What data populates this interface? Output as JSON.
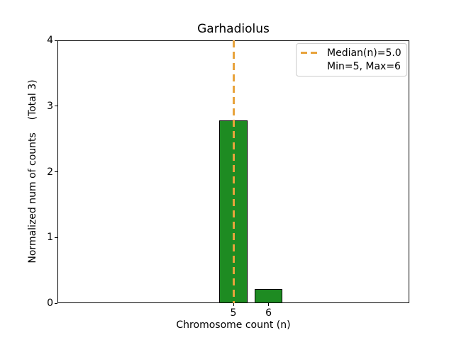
{
  "chart_data": {
    "type": "bar",
    "title": "Garhadiolus",
    "xlabel": "Chromosome count (n)",
    "ylabel": "Normalized num of counts    (Total 3)",
    "categories": [
      5,
      6
    ],
    "values": [
      2.78,
      0.22
    ],
    "total": 3,
    "xticks": [
      5,
      6
    ],
    "yticks": [
      0,
      1,
      2,
      3,
      4
    ],
    "xlim": [
      0,
      10
    ],
    "ylim": [
      0,
      4
    ],
    "bar_width": 0.8,
    "grid": false,
    "median_line": {
      "x": 5,
      "style": "dashed"
    },
    "colors": {
      "bar_fill": "#1E8B22",
      "bar_edge": "#000000",
      "median_line": "#E8A33C",
      "axis": "#000000",
      "legend_border": "#CCCCCC",
      "background": "#FFFFFF"
    },
    "legend": {
      "position": "upper right",
      "items": [
        {
          "label": "Median(n)=5.0",
          "handle": "dashed-line"
        },
        {
          "label": "Min=5, Max=6",
          "handle": "none"
        }
      ]
    }
  }
}
